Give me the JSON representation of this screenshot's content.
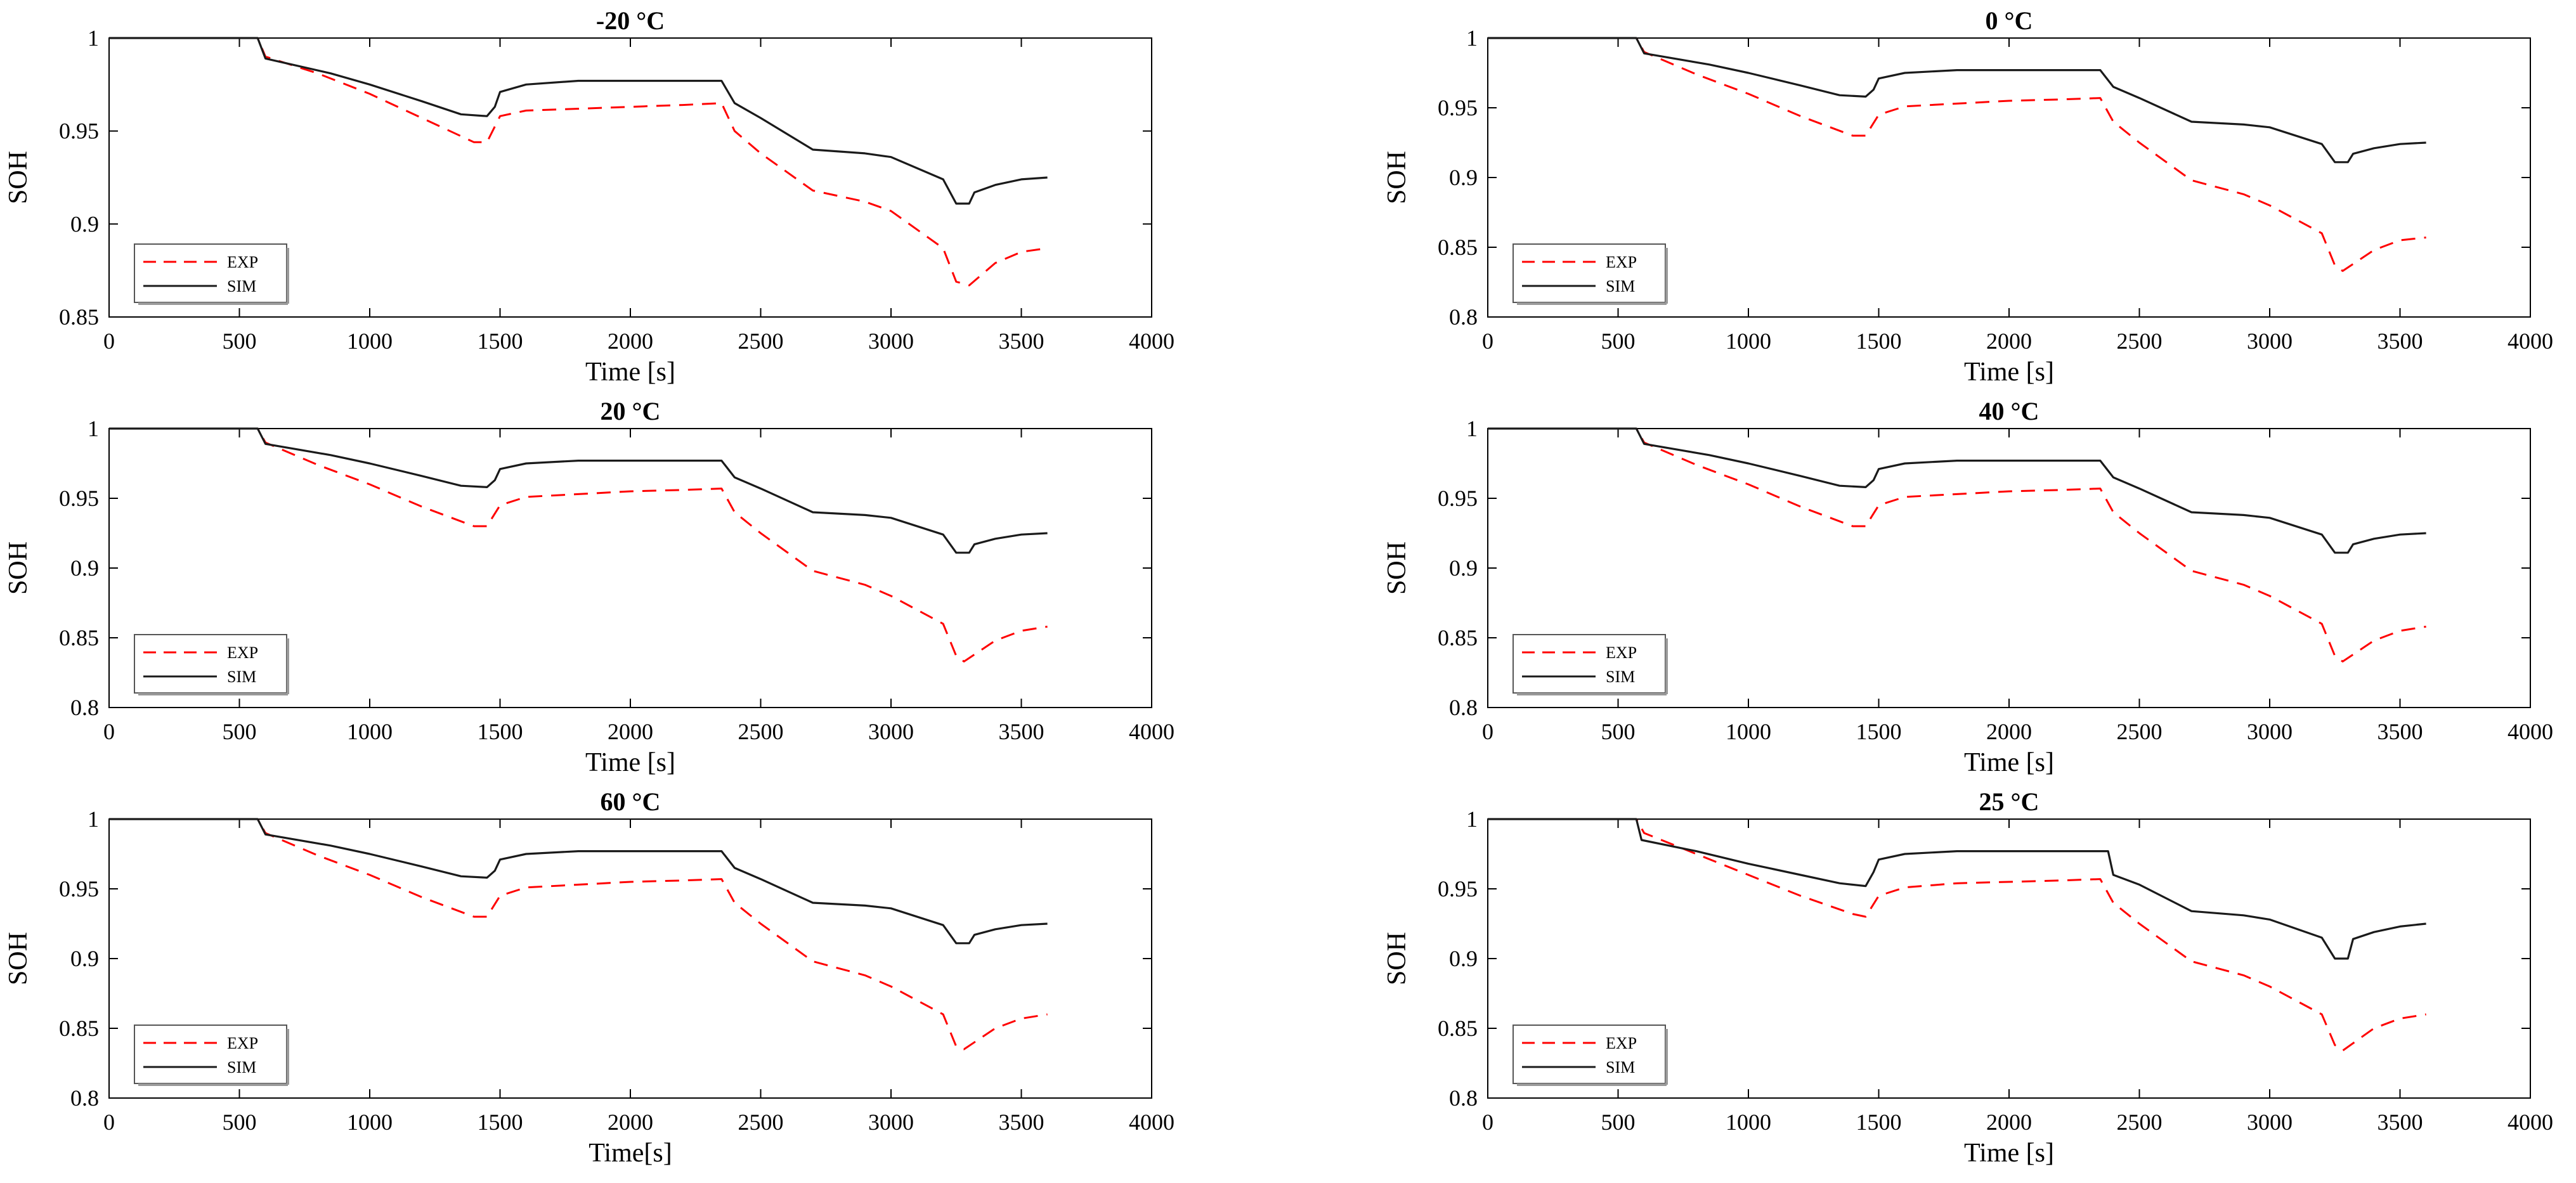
{
  "figure": {
    "description_free": true
  },
  "colors": {
    "exp": "#ff0000",
    "sim": "#1a1a1a",
    "axis": "#000000"
  },
  "chart_data": [
    {
      "type": "line",
      "title": "-20 °C",
      "xlabel": "Time [s]",
      "ylabel": "SOH",
      "xlim": [
        0,
        4000
      ],
      "ylim": [
        0.85,
        1.0
      ],
      "xticks": [
        "0",
        "500",
        "1000",
        "1500",
        "2000",
        "2500",
        "3000",
        "3500",
        "4000"
      ],
      "yticks": [
        "0.85",
        "0.9",
        "0.95",
        "1"
      ],
      "xtick_values": [
        0,
        500,
        1000,
        1500,
        2000,
        2500,
        3000,
        3500,
        4000
      ],
      "ytick_values": [
        0.85,
        0.9,
        0.95,
        1.0
      ],
      "legend": [
        "EXP",
        "SIM"
      ],
      "legend_position": "bottom-left",
      "series": [
        {
          "name": "EXP",
          "style": "dashed",
          "x": [
            0,
            500,
            570,
            600,
            800,
            1000,
            1200,
            1400,
            1450,
            1500,
            1600,
            1800,
            2000,
            2200,
            2350,
            2400,
            2500,
            2700,
            2900,
            3000,
            3200,
            3250,
            3300,
            3400,
            3500,
            3600
          ],
          "y": [
            1.0,
            1.0,
            1.0,
            0.99,
            0.981,
            0.97,
            0.957,
            0.944,
            0.944,
            0.958,
            0.961,
            0.962,
            0.963,
            0.964,
            0.965,
            0.95,
            0.938,
            0.918,
            0.912,
            0.907,
            0.887,
            0.869,
            0.867,
            0.879,
            0.885,
            0.887
          ]
        },
        {
          "name": "SIM",
          "style": "solid",
          "x": [
            0,
            500,
            570,
            600,
            850,
            1000,
            1200,
            1350,
            1450,
            1480,
            1500,
            1600,
            1800,
            2000,
            2200,
            2350,
            2400,
            2500,
            2700,
            2900,
            3000,
            3200,
            3250,
            3300,
            3320,
            3400,
            3500,
            3600
          ],
          "y": [
            1.0,
            1.0,
            1.0,
            0.989,
            0.981,
            0.975,
            0.966,
            0.959,
            0.958,
            0.963,
            0.971,
            0.975,
            0.977,
            0.977,
            0.977,
            0.977,
            0.965,
            0.957,
            0.94,
            0.938,
            0.936,
            0.924,
            0.911,
            0.911,
            0.917,
            0.921,
            0.924,
            0.925
          ]
        }
      ]
    },
    {
      "type": "line",
      "title": "0 °C",
      "xlabel": "Time [s]",
      "ylabel": "SOH",
      "xlim": [
        0,
        4000
      ],
      "ylim": [
        0.8,
        1.0
      ],
      "xticks": [
        "0",
        "500",
        "1000",
        "1500",
        "2000",
        "2500",
        "3000",
        "3500",
        "4000"
      ],
      "yticks": [
        "0.8",
        "0.85",
        "0.9",
        "0.95",
        "1"
      ],
      "xtick_values": [
        0,
        500,
        1000,
        1500,
        2000,
        2500,
        3000,
        3500,
        4000
      ],
      "ytick_values": [
        0.8,
        0.85,
        0.9,
        0.95,
        1.0
      ],
      "legend": [
        "EXP",
        "SIM"
      ],
      "legend_position": "bottom-left",
      "series": [
        {
          "name": "EXP",
          "style": "dashed",
          "x": [
            0,
            500,
            570,
            600,
            800,
            1000,
            1200,
            1400,
            1450,
            1500,
            1600,
            1800,
            2000,
            2200,
            2350,
            2400,
            2500,
            2700,
            2900,
            3000,
            3200,
            3250,
            3280,
            3400,
            3500,
            3600
          ],
          "y": [
            1.0,
            1.0,
            1.0,
            0.99,
            0.974,
            0.96,
            0.944,
            0.93,
            0.93,
            0.945,
            0.951,
            0.953,
            0.955,
            0.956,
            0.957,
            0.94,
            0.925,
            0.898,
            0.888,
            0.88,
            0.86,
            0.837,
            0.833,
            0.848,
            0.855,
            0.857
          ]
        },
        {
          "name": "SIM",
          "style": "solid",
          "x": [
            0,
            500,
            570,
            600,
            850,
            1000,
            1200,
            1350,
            1450,
            1480,
            1500,
            1600,
            1800,
            2000,
            2200,
            2350,
            2400,
            2500,
            2700,
            2900,
            3000,
            3200,
            3250,
            3300,
            3320,
            3400,
            3500,
            3600
          ],
          "y": [
            1.0,
            1.0,
            1.0,
            0.989,
            0.981,
            0.975,
            0.966,
            0.959,
            0.958,
            0.963,
            0.971,
            0.975,
            0.977,
            0.977,
            0.977,
            0.977,
            0.965,
            0.957,
            0.94,
            0.938,
            0.936,
            0.924,
            0.911,
            0.911,
            0.917,
            0.921,
            0.924,
            0.925
          ]
        }
      ]
    },
    {
      "type": "line",
      "title": "20 °C",
      "xlabel": "Time [s]",
      "ylabel": "SOH",
      "xlim": [
        0,
        4000
      ],
      "ylim": [
        0.8,
        1.0
      ],
      "xticks": [
        "0",
        "500",
        "1000",
        "1500",
        "2000",
        "2500",
        "3000",
        "3500",
        "4000"
      ],
      "yticks": [
        "0.8",
        "0.85",
        "0.9",
        "0.95",
        "1"
      ],
      "xtick_values": [
        0,
        500,
        1000,
        1500,
        2000,
        2500,
        3000,
        3500,
        4000
      ],
      "ytick_values": [
        0.8,
        0.85,
        0.9,
        0.95,
        1.0
      ],
      "legend": [
        "EXP",
        "SIM"
      ],
      "legend_position": "bottom-left",
      "series": [
        {
          "name": "EXP",
          "style": "dashed",
          "x": [
            0,
            500,
            570,
            600,
            800,
            1000,
            1200,
            1400,
            1450,
            1500,
            1600,
            1800,
            2000,
            2200,
            2350,
            2400,
            2500,
            2700,
            2900,
            3000,
            3200,
            3250,
            3280,
            3400,
            3500,
            3600
          ],
          "y": [
            1.0,
            1.0,
            1.0,
            0.99,
            0.974,
            0.96,
            0.944,
            0.93,
            0.93,
            0.945,
            0.951,
            0.953,
            0.955,
            0.956,
            0.957,
            0.94,
            0.925,
            0.898,
            0.888,
            0.88,
            0.86,
            0.837,
            0.833,
            0.848,
            0.855,
            0.858
          ]
        },
        {
          "name": "SIM",
          "style": "solid",
          "x": [
            0,
            500,
            570,
            600,
            850,
            1000,
            1200,
            1350,
            1450,
            1480,
            1500,
            1600,
            1800,
            2000,
            2200,
            2350,
            2400,
            2500,
            2700,
            2900,
            3000,
            3200,
            3250,
            3300,
            3320,
            3400,
            3500,
            3600
          ],
          "y": [
            1.0,
            1.0,
            1.0,
            0.989,
            0.981,
            0.975,
            0.966,
            0.959,
            0.958,
            0.963,
            0.971,
            0.975,
            0.977,
            0.977,
            0.977,
            0.977,
            0.965,
            0.957,
            0.94,
            0.938,
            0.936,
            0.924,
            0.911,
            0.911,
            0.917,
            0.921,
            0.924,
            0.925
          ]
        }
      ]
    },
    {
      "type": "line",
      "title": "40 °C",
      "xlabel": "Time [s]",
      "ylabel": "SOH",
      "xlim": [
        0,
        4000
      ],
      "ylim": [
        0.8,
        1.0
      ],
      "xticks": [
        "0",
        "500",
        "1000",
        "1500",
        "2000",
        "2500",
        "3000",
        "3500",
        "4000"
      ],
      "yticks": [
        "0.8",
        "0.85",
        "0.9",
        "0.95",
        "1"
      ],
      "xtick_values": [
        0,
        500,
        1000,
        1500,
        2000,
        2500,
        3000,
        3500,
        4000
      ],
      "ytick_values": [
        0.8,
        0.85,
        0.9,
        0.95,
        1.0
      ],
      "legend": [
        "EXP",
        "SIM"
      ],
      "legend_position": "bottom-left",
      "series": [
        {
          "name": "EXP",
          "style": "dashed",
          "x": [
            0,
            500,
            570,
            600,
            800,
            1000,
            1200,
            1400,
            1450,
            1500,
            1600,
            1800,
            2000,
            2200,
            2350,
            2400,
            2500,
            2700,
            2900,
            3000,
            3200,
            3250,
            3280,
            3400,
            3500,
            3600
          ],
          "y": [
            1.0,
            1.0,
            1.0,
            0.99,
            0.974,
            0.96,
            0.944,
            0.93,
            0.93,
            0.945,
            0.951,
            0.953,
            0.955,
            0.956,
            0.957,
            0.94,
            0.925,
            0.898,
            0.888,
            0.88,
            0.86,
            0.837,
            0.833,
            0.848,
            0.855,
            0.858
          ]
        },
        {
          "name": "SIM",
          "style": "solid",
          "x": [
            0,
            500,
            570,
            600,
            850,
            1000,
            1200,
            1350,
            1450,
            1480,
            1500,
            1600,
            1800,
            2000,
            2200,
            2350,
            2400,
            2500,
            2700,
            2900,
            3000,
            3200,
            3250,
            3300,
            3320,
            3400,
            3500,
            3600
          ],
          "y": [
            1.0,
            1.0,
            1.0,
            0.989,
            0.981,
            0.975,
            0.966,
            0.959,
            0.958,
            0.963,
            0.971,
            0.975,
            0.977,
            0.977,
            0.977,
            0.977,
            0.965,
            0.957,
            0.94,
            0.938,
            0.936,
            0.924,
            0.911,
            0.911,
            0.917,
            0.921,
            0.924,
            0.925
          ]
        }
      ]
    },
    {
      "type": "line",
      "title": "60 °C",
      "xlabel": "Time[s]",
      "ylabel": "SOH",
      "xlim": [
        0,
        4000
      ],
      "ylim": [
        0.8,
        1.0
      ],
      "xticks": [
        "0",
        "500",
        "1000",
        "1500",
        "2000",
        "2500",
        "3000",
        "3500",
        "4000"
      ],
      "yticks": [
        "0.8",
        "0.85",
        "0.9",
        "0.95",
        "1"
      ],
      "xtick_values": [
        0,
        500,
        1000,
        1500,
        2000,
        2500,
        3000,
        3500,
        4000
      ],
      "ytick_values": [
        0.8,
        0.85,
        0.9,
        0.95,
        1.0
      ],
      "legend": [
        "EXP",
        "SIM"
      ],
      "legend_position": "bottom-left",
      "series": [
        {
          "name": "EXP",
          "style": "dashed",
          "x": [
            0,
            500,
            570,
            600,
            800,
            1000,
            1200,
            1400,
            1450,
            1500,
            1600,
            1800,
            2000,
            2200,
            2350,
            2400,
            2500,
            2700,
            2900,
            3000,
            3200,
            3250,
            3280,
            3400,
            3500,
            3600
          ],
          "y": [
            1.0,
            1.0,
            1.0,
            0.99,
            0.974,
            0.96,
            0.944,
            0.93,
            0.93,
            0.945,
            0.951,
            0.953,
            0.955,
            0.956,
            0.957,
            0.94,
            0.925,
            0.898,
            0.888,
            0.88,
            0.86,
            0.837,
            0.835,
            0.85,
            0.857,
            0.86
          ]
        },
        {
          "name": "SIM",
          "style": "solid",
          "x": [
            0,
            500,
            570,
            600,
            850,
            1000,
            1200,
            1350,
            1450,
            1480,
            1500,
            1600,
            1800,
            2000,
            2200,
            2350,
            2400,
            2500,
            2700,
            2900,
            3000,
            3200,
            3250,
            3300,
            3320,
            3400,
            3500,
            3600
          ],
          "y": [
            1.0,
            1.0,
            1.0,
            0.989,
            0.981,
            0.975,
            0.966,
            0.959,
            0.958,
            0.963,
            0.971,
            0.975,
            0.977,
            0.977,
            0.977,
            0.977,
            0.965,
            0.957,
            0.94,
            0.938,
            0.936,
            0.924,
            0.911,
            0.911,
            0.917,
            0.921,
            0.924,
            0.925
          ]
        }
      ]
    },
    {
      "type": "line",
      "title": "25 °C",
      "xlabel": "Time [s]",
      "ylabel": "SOH",
      "xlim": [
        0,
        4000
      ],
      "ylim": [
        0.8,
        1.0
      ],
      "xticks": [
        "0",
        "500",
        "1000",
        "1500",
        "2000",
        "2500",
        "3000",
        "3500",
        "4000"
      ],
      "yticks": [
        "0.8",
        "0.85",
        "0.9",
        "0.95",
        "1"
      ],
      "xtick_values": [
        0,
        500,
        1000,
        1500,
        2000,
        2500,
        3000,
        3500,
        4000
      ],
      "ytick_values": [
        0.8,
        0.85,
        0.9,
        0.95,
        1.0
      ],
      "legend": [
        "EXP",
        "SIM"
      ],
      "legend_position": "bottom-left",
      "series": [
        {
          "name": "EXP",
          "style": "dashed",
          "x": [
            0,
            500,
            570,
            600,
            800,
            1000,
            1200,
            1400,
            1450,
            1500,
            1600,
            1800,
            2000,
            2200,
            2350,
            2400,
            2500,
            2700,
            2900,
            3000,
            3200,
            3250,
            3280,
            3400,
            3500,
            3600
          ],
          "y": [
            1.0,
            1.0,
            1.0,
            0.99,
            0.975,
            0.96,
            0.945,
            0.932,
            0.93,
            0.945,
            0.951,
            0.954,
            0.955,
            0.956,
            0.957,
            0.94,
            0.925,
            0.898,
            0.888,
            0.88,
            0.86,
            0.838,
            0.834,
            0.85,
            0.857,
            0.86
          ]
        },
        {
          "name": "SIM",
          "style": "solid",
          "x": [
            0,
            500,
            570,
            590,
            800,
            1000,
            1200,
            1350,
            1450,
            1480,
            1500,
            1600,
            1800,
            2000,
            2200,
            2350,
            2380,
            2400,
            2500,
            2700,
            2900,
            3000,
            3200,
            3250,
            3300,
            3320,
            3400,
            3500,
            3600
          ],
          "y": [
            1.0,
            1.0,
            1.0,
            0.985,
            0.977,
            0.968,
            0.96,
            0.954,
            0.952,
            0.962,
            0.971,
            0.975,
            0.977,
            0.977,
            0.977,
            0.977,
            0.977,
            0.96,
            0.953,
            0.934,
            0.931,
            0.928,
            0.915,
            0.9,
            0.9,
            0.914,
            0.919,
            0.923,
            0.925
          ]
        }
      ]
    }
  ]
}
